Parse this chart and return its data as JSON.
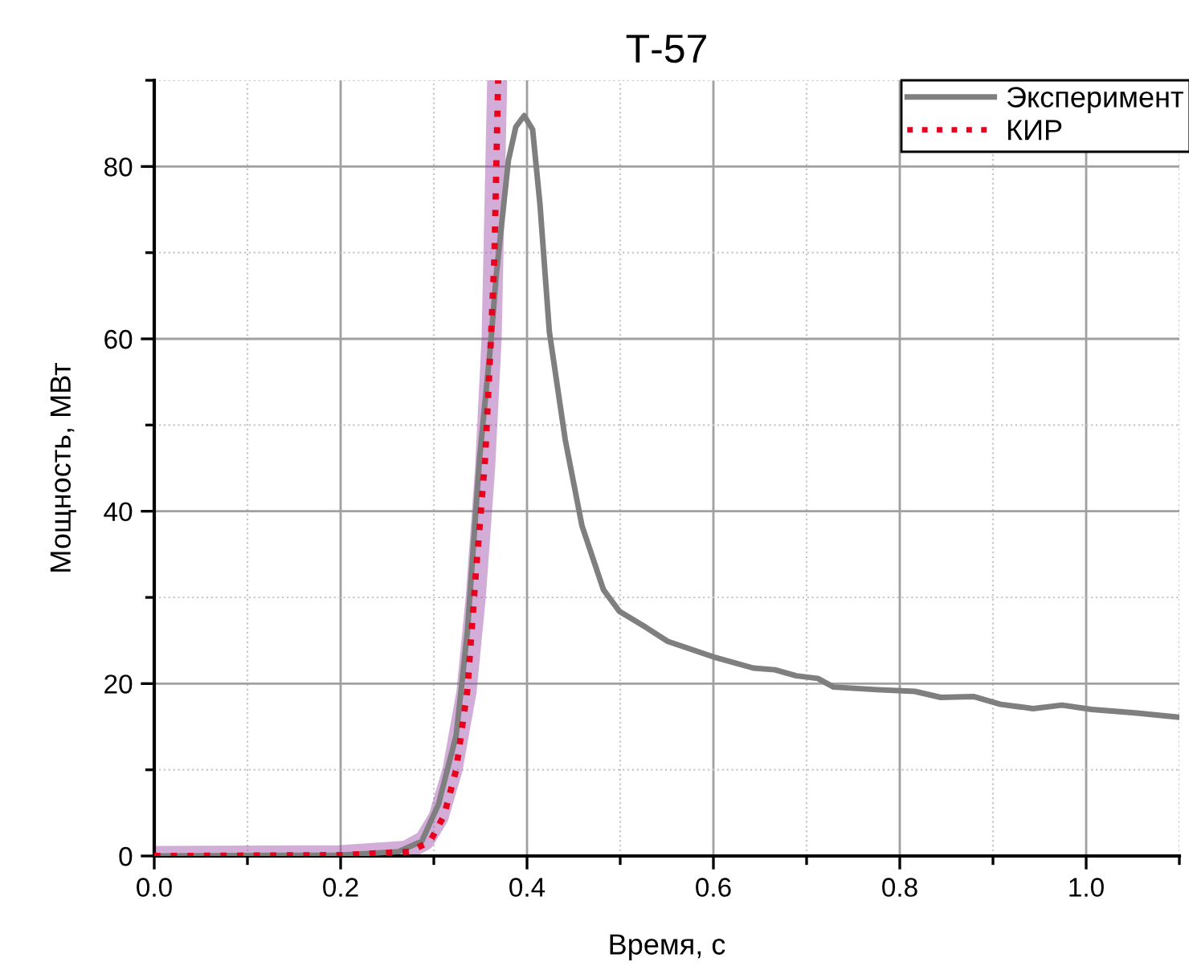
{
  "chart_data": {
    "type": "line",
    "title": "Т-57",
    "xlabel": "Время, с",
    "ylabel": "Мощность, МВт",
    "xlim": [
      0,
      1.1
    ],
    "ylim": [
      0,
      90
    ],
    "xticks": [
      {
        "value": 0,
        "label": "0.0"
      },
      0.2,
      0.4,
      0.6,
      0.8,
      {
        "value": 1.0,
        "label": "1.0"
      }
    ],
    "yticks": [
      0,
      20,
      40,
      60,
      80
    ],
    "grid": true,
    "legend": "top right",
    "series": [
      {
        "color": "#9b4aa8",
        "x": [
          0,
          0.2,
          0.27,
          0.29,
          0.305,
          0.32,
          0.335,
          0.345,
          0.355,
          0.362,
          0.368
        ],
        "values": [
          0,
          0.1,
          0.6,
          1.8,
          4.5,
          10,
          19,
          30,
          45,
          60,
          90
        ]
      },
      {
        "name": "Эксперимент",
        "color": "#7f7f7f",
        "line_style": "solid",
        "x": [
          0,
          0.2,
          0.262,
          0.287,
          0.305,
          0.324,
          0.336,
          0.349,
          0.361,
          0.367,
          0.38,
          0.388,
          0.397,
          0.406,
          0.414,
          0.424,
          0.441,
          0.459,
          0.482,
          0.499,
          0.528,
          0.551,
          0.6,
          0.643,
          0.666,
          0.689,
          0.712,
          0.729,
          0.775,
          0.816,
          0.844,
          0.879,
          0.908,
          0.943,
          0.974,
          1.006,
          1.052,
          1.1
        ],
        "values": [
          0,
          0.1,
          0.5,
          1.7,
          6,
          14,
          26,
          46,
          59.4,
          67.4,
          80.7,
          84.6,
          85.9,
          84.3,
          75.5,
          60.8,
          48.3,
          38.3,
          30.9,
          28.4,
          26.5,
          24.9,
          23.1,
          21.8,
          21.6,
          20.9,
          20.6,
          19.6,
          19.3,
          19.1,
          18.4,
          18.5,
          17.6,
          17.1,
          17.5,
          17.0,
          16.6,
          16.1
        ]
      },
      {
        "name": "КИР",
        "color": "#e8001c",
        "line_style": "dotted",
        "x": [
          0,
          0.2,
          0.274,
          0.296,
          0.311,
          0.324,
          0.336,
          0.345,
          0.355,
          0.361,
          0.365,
          0.369
        ],
        "values": [
          0,
          0.1,
          0.5,
          1.7,
          4.7,
          10,
          19.3,
          32.7,
          46,
          59.4,
          69.4,
          90
        ]
      }
    ]
  }
}
